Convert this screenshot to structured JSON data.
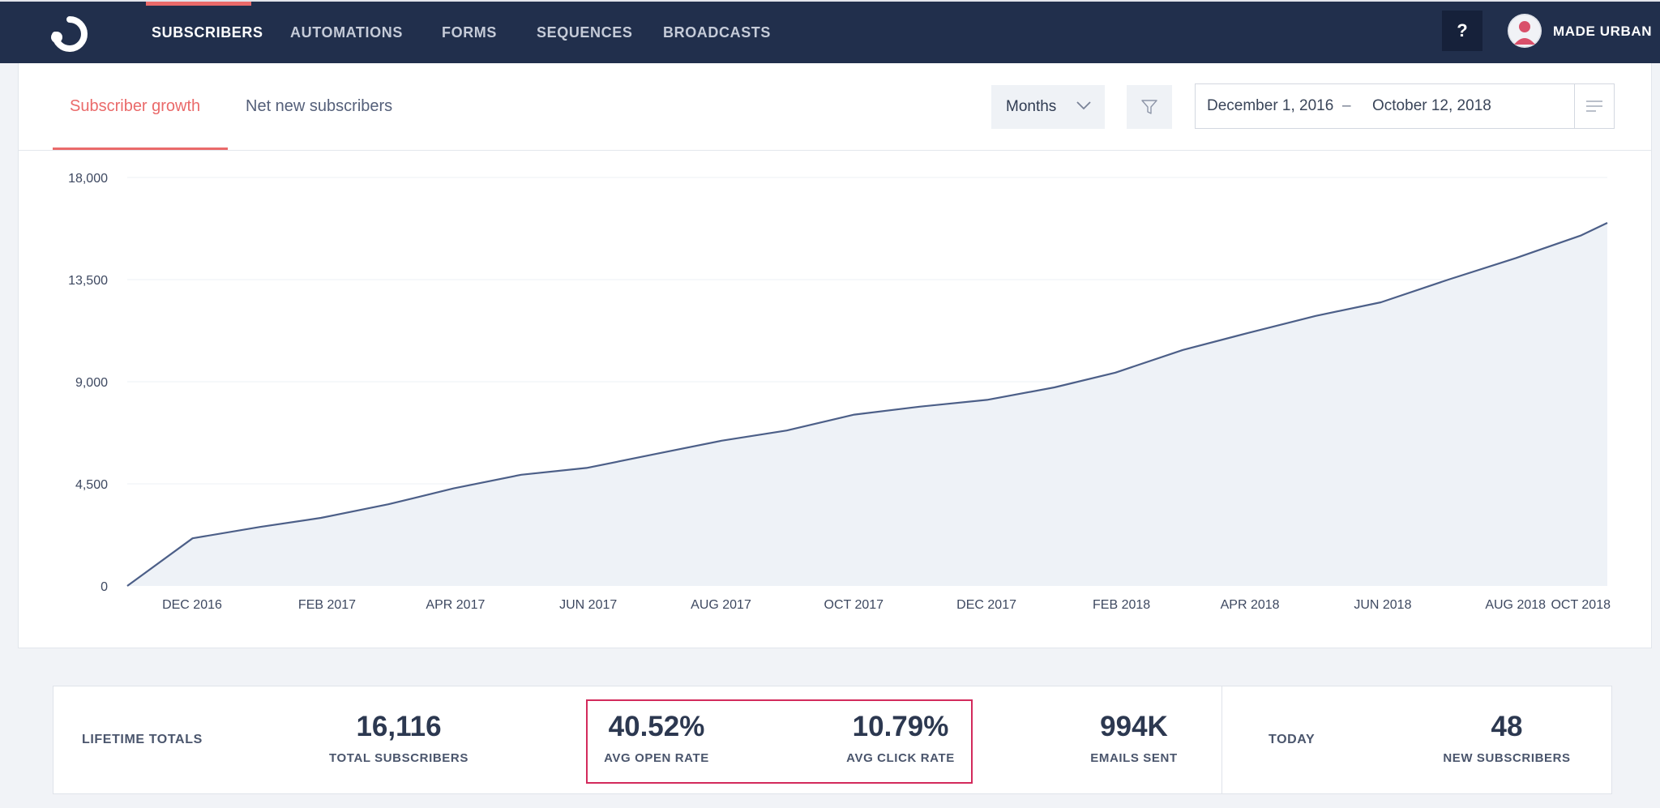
{
  "nav": {
    "items": [
      "SUBSCRIBERS",
      "AUTOMATIONS",
      "FORMS",
      "SEQUENCES",
      "BROADCASTS"
    ],
    "active_index": 0,
    "help_label": "?",
    "user_name": "MADE URBAN"
  },
  "colors": {
    "nav_bg": "#212f4c",
    "accent": "#ea6a6a",
    "line": "#4c5f88",
    "area_fill": "#eef2f7",
    "highlight_border": "#d32a5c"
  },
  "card": {
    "tabs": [
      "Subscriber growth",
      "Net new subscribers"
    ],
    "active_tab": 0,
    "interval_select": "Months",
    "date_start": "December 1, 2016",
    "date_separator": "–",
    "date_end": "October 12, 2018"
  },
  "icons": {
    "logo": "convertkit-logo-icon",
    "dropdown": "chevron-down-icon",
    "filter": "filter-funnel-icon",
    "menu": "menu-lines-icon",
    "avatar": "user-avatar-icon"
  },
  "chart_data": {
    "type": "area",
    "x_labels": [
      "DEC 2016",
      "FEB 2017",
      "APR 2017",
      "JUN 2017",
      "AUG 2017",
      "OCT 2017",
      "DEC 2017",
      "FEB 2018",
      "APR 2018",
      "JUN 2018",
      "AUG 2018",
      "OCT 2018"
    ],
    "y_ticks": [
      "0",
      "4,500",
      "9,000",
      "13,500",
      "18,000"
    ],
    "ylim": [
      0,
      18000
    ],
    "grid": true,
    "series": [
      {
        "x": [
          "2016-12-01",
          "2016-12-31",
          "2017-01-31",
          "2017-02-28",
          "2017-03-31",
          "2017-04-30",
          "2017-05-31",
          "2017-06-30",
          "2017-07-31",
          "2017-08-31",
          "2017-09-30",
          "2017-10-31",
          "2017-11-30",
          "2017-12-31",
          "2018-01-31",
          "2018-02-28",
          "2018-03-31",
          "2018-04-30",
          "2018-05-31",
          "2018-06-30",
          "2018-07-31",
          "2018-08-31",
          "2018-09-30",
          "2018-10-12"
        ],
        "y": [
          0,
          2100,
          2600,
          3000,
          3600,
          4300,
          4900,
          5200,
          5800,
          6400,
          6850,
          7550,
          7900,
          8200,
          8750,
          9400,
          10400,
          11150,
          11900,
          12500,
          13500,
          14450,
          15450,
          16000
        ]
      }
    ]
  },
  "stats": {
    "lifetime_label": "LIFETIME TOTALS",
    "total_subscribers_value": "16,116",
    "total_subscribers_label": "TOTAL SUBSCRIBERS",
    "open_rate_value": "40.52%",
    "open_rate_label": "AVG OPEN RATE",
    "click_rate_value": "10.79%",
    "click_rate_label": "AVG CLICK RATE",
    "emails_sent_value": "994K",
    "emails_sent_label": "EMAILS SENT",
    "today_label": "TODAY",
    "new_subscribers_value": "48",
    "new_subscribers_label": "NEW SUBSCRIBERS"
  }
}
